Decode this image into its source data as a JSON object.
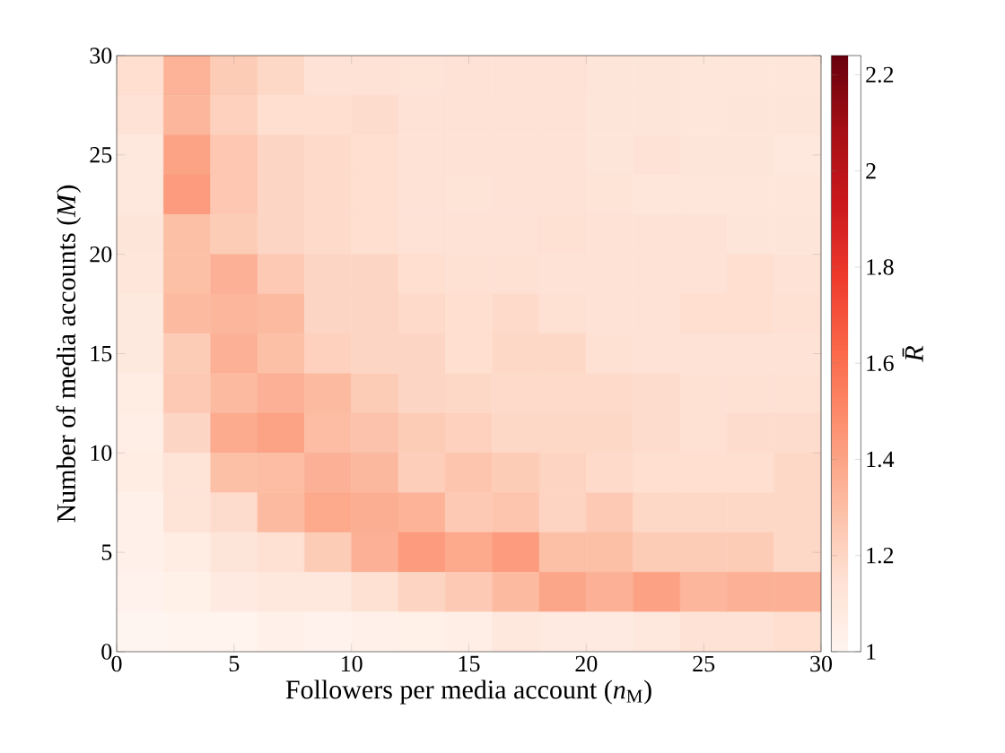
{
  "chart_data": {
    "type": "heatmap",
    "xlabel": "Followers per media account (*n*$_{M}$)",
    "ylabel": "Number of media accounts (*M*)",
    "clabel": "R̄",
    "xlim": [
      0,
      30
    ],
    "xticks": [
      0,
      5,
      10,
      15,
      20,
      25,
      30
    ],
    "ylim": [
      0,
      30
    ],
    "yticks": [
      0,
      5,
      10,
      15,
      20,
      25,
      30
    ],
    "clim": [
      1,
      2.24
    ],
    "cticks": [
      1,
      1.2,
      1.4,
      1.6,
      1.8,
      2,
      2.2
    ],
    "cells": [
      [
        1.16,
        1.34,
        1.24,
        1.19,
        1.14,
        1.14,
        1.13,
        1.14,
        1.14,
        1.14,
        1.12,
        1.12,
        1.11,
        1.11,
        1.11
      ],
      [
        1.14,
        1.33,
        1.22,
        1.16,
        1.16,
        1.17,
        1.14,
        1.14,
        1.14,
        1.14,
        1.12,
        1.12,
        1.11,
        1.12,
        1.12
      ],
      [
        1.1,
        1.4,
        1.26,
        1.2,
        1.18,
        1.16,
        1.14,
        1.14,
        1.14,
        1.14,
        1.12,
        1.14,
        1.12,
        1.12,
        1.1
      ],
      [
        1.1,
        1.43,
        1.26,
        1.2,
        1.18,
        1.16,
        1.14,
        1.13,
        1.14,
        1.14,
        1.13,
        1.11,
        1.11,
        1.11,
        1.11
      ],
      [
        1.12,
        1.29,
        1.24,
        1.2,
        1.18,
        1.16,
        1.14,
        1.14,
        1.14,
        1.15,
        1.14,
        1.14,
        1.14,
        1.12,
        1.12
      ],
      [
        1.11,
        1.29,
        1.35,
        1.25,
        1.2,
        1.2,
        1.16,
        1.15,
        1.15,
        1.14,
        1.14,
        1.14,
        1.14,
        1.16,
        1.14
      ],
      [
        1.09,
        1.31,
        1.33,
        1.31,
        1.2,
        1.2,
        1.18,
        1.16,
        1.18,
        1.15,
        1.14,
        1.14,
        1.16,
        1.16,
        1.15
      ],
      [
        1.09,
        1.24,
        1.35,
        1.29,
        1.22,
        1.2,
        1.2,
        1.16,
        1.19,
        1.19,
        1.15,
        1.14,
        1.14,
        1.14,
        1.14
      ],
      [
        1.06,
        1.25,
        1.31,
        1.35,
        1.31,
        1.24,
        1.2,
        1.19,
        1.18,
        1.18,
        1.18,
        1.17,
        1.15,
        1.15,
        1.15
      ],
      [
        1.05,
        1.2,
        1.37,
        1.4,
        1.3,
        1.28,
        1.24,
        1.22,
        1.19,
        1.19,
        1.19,
        1.17,
        1.15,
        1.17,
        1.17
      ],
      [
        1.07,
        1.13,
        1.29,
        1.3,
        1.35,
        1.32,
        1.23,
        1.27,
        1.24,
        1.21,
        1.18,
        1.16,
        1.16,
        1.16,
        1.19
      ],
      [
        1.03,
        1.13,
        1.17,
        1.31,
        1.38,
        1.36,
        1.34,
        1.25,
        1.27,
        1.21,
        1.25,
        1.19,
        1.19,
        1.19,
        1.19
      ],
      [
        1.03,
        1.07,
        1.12,
        1.15,
        1.24,
        1.35,
        1.43,
        1.38,
        1.43,
        1.29,
        1.29,
        1.24,
        1.24,
        1.24,
        1.19
      ],
      [
        1.02,
        1.04,
        1.08,
        1.1,
        1.1,
        1.15,
        1.21,
        1.25,
        1.31,
        1.39,
        1.35,
        1.41,
        1.33,
        1.35,
        1.35
      ],
      [
        1.0,
        1.01,
        1.01,
        1.03,
        1.02,
        1.03,
        1.04,
        1.05,
        1.1,
        1.08,
        1.08,
        1.1,
        1.14,
        1.14,
        1.16
      ]
    ]
  }
}
